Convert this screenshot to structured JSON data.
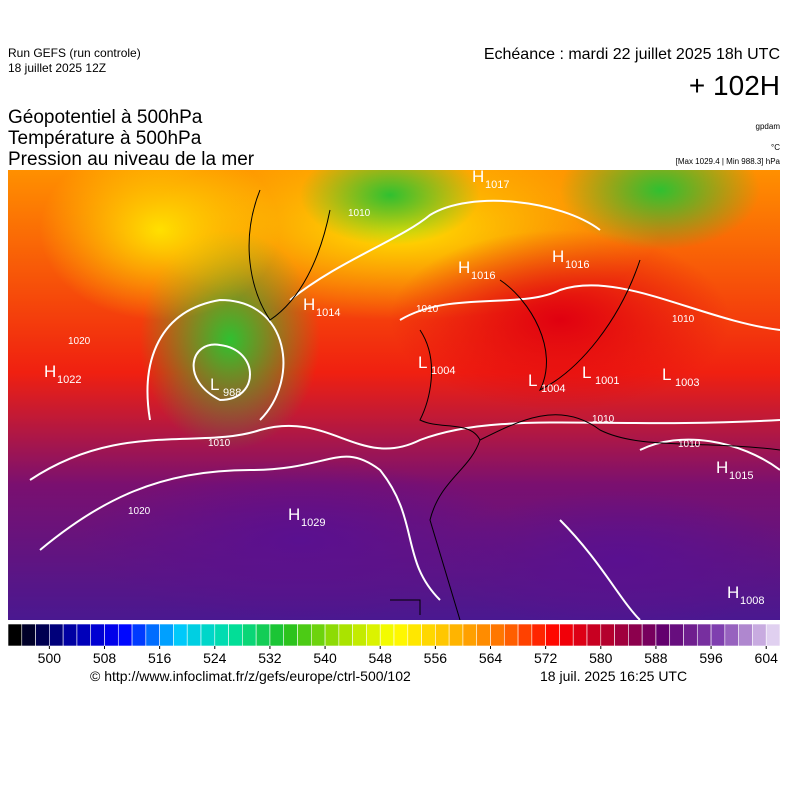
{
  "header": {
    "run": "Run GEFS (run controle)",
    "run_date": "18 juillet 2025 12Z",
    "valid": "Echéance : mardi 22 juillet 2025 18h UTC",
    "lead": "+ 102H"
  },
  "layers": [
    "Géopotentiel à 500hPa",
    "Température à 500hPa",
    "Pression au niveau de la mer"
  ],
  "units": [
    "gpdam",
    "°C",
    "[Max 1029.4 | Min 988.3] hPa"
  ],
  "map": {
    "centers": [
      {
        "kind": "H",
        "value": "1017"
      },
      {
        "kind": "H",
        "value": "1016"
      },
      {
        "kind": "H",
        "value": "1016"
      },
      {
        "kind": "H",
        "value": "1014"
      },
      {
        "kind": "H",
        "value": "1022"
      },
      {
        "kind": "L",
        "value": "988"
      },
      {
        "kind": "L",
        "value": "1004"
      },
      {
        "kind": "L",
        "value": "1004"
      },
      {
        "kind": "L",
        "value": "1001"
      },
      {
        "kind": "L",
        "value": "1003"
      },
      {
        "kind": "H",
        "value": "1015"
      },
      {
        "kind": "H",
        "value": "1029"
      },
      {
        "kind": "H",
        "value": "1008"
      }
    ],
    "isobar_labels": [
      "1010",
      "1010",
      "1010",
      "1010",
      "1010",
      "1010",
      "1020",
      "1020"
    ]
  },
  "colorbar": {
    "lim": [
      494,
      606
    ],
    "step": 2,
    "ticks": [
      500,
      508,
      516,
      524,
      532,
      540,
      548,
      556,
      564,
      572,
      580,
      588,
      596,
      604
    ],
    "colors": [
      "#000000",
      "#0000a0",
      "#0000ff",
      "#00c8ff",
      "#00e0a0",
      "#20c020",
      "#a0e000",
      "#ffff00",
      "#ffc000",
      "#ff7000",
      "#ff0000",
      "#b00030",
      "#600070",
      "#8040b0",
      "#e0d0f0"
    ]
  },
  "footer": {
    "url": "© http://www.infoclimat.fr/z/gefs/europe/ctrl-500/102",
    "generated": "18 juil. 2025 16:25 UTC"
  }
}
